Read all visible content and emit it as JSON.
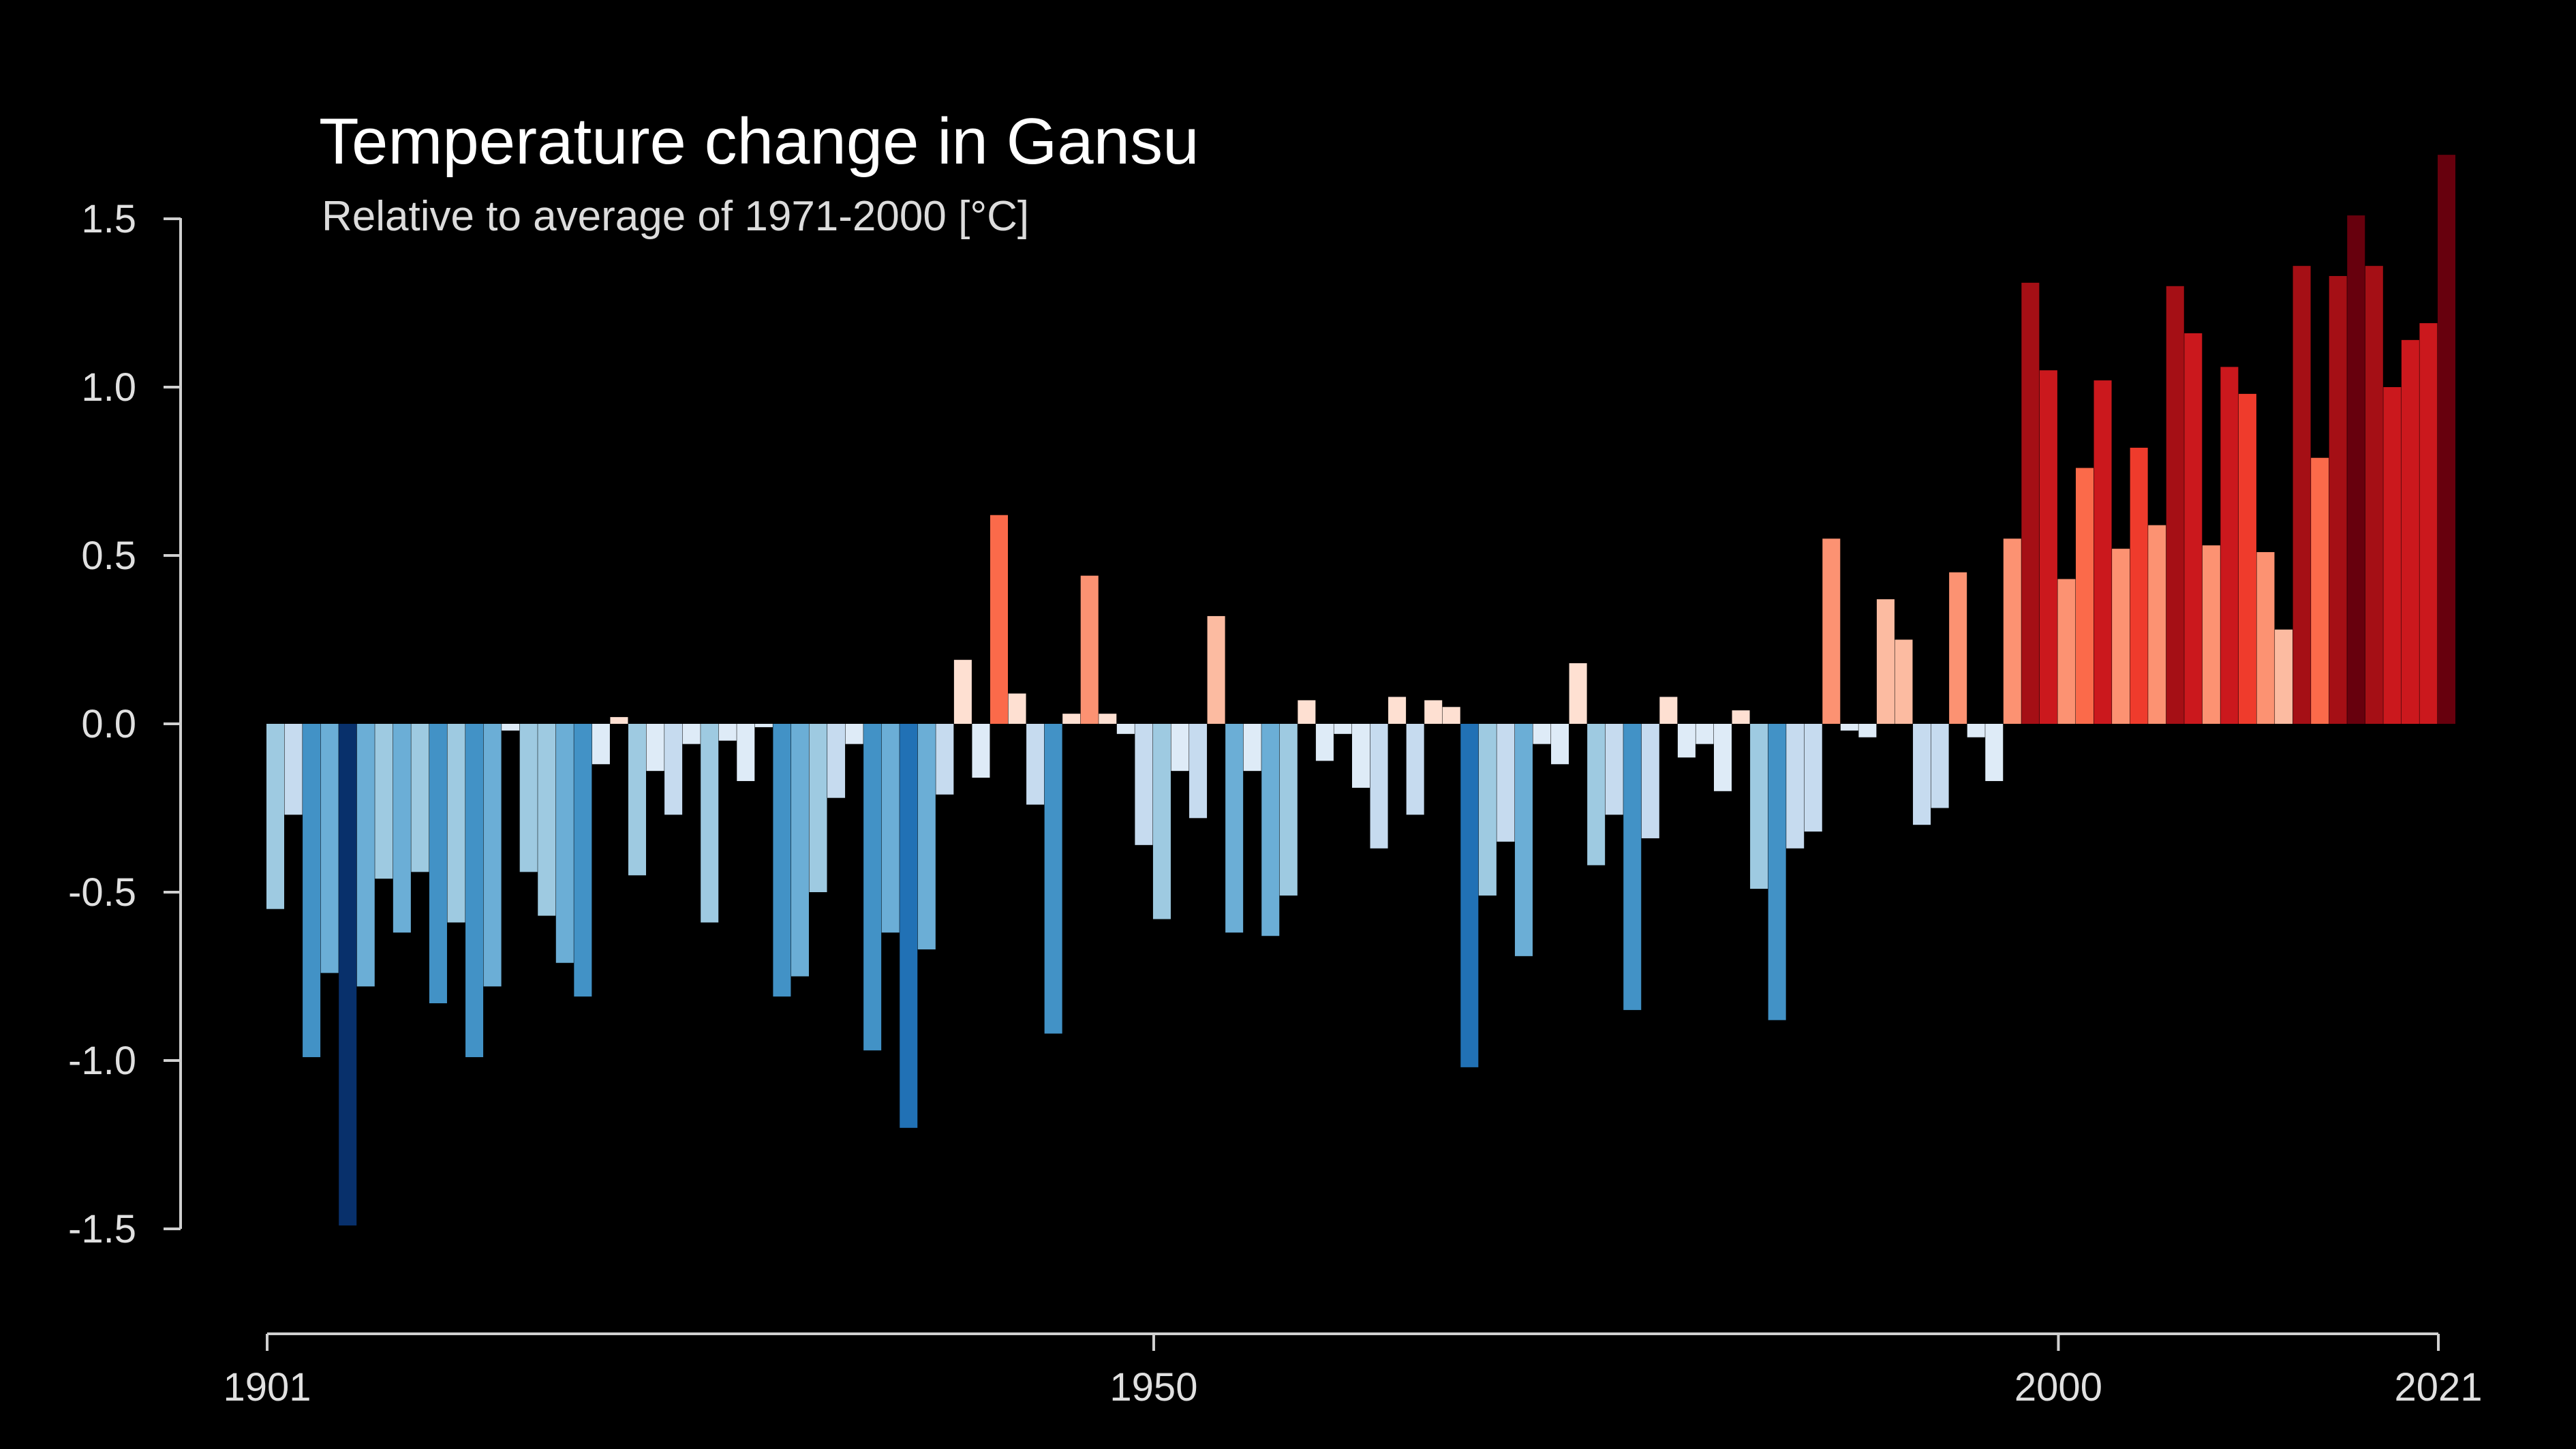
{
  "chart_data": {
    "type": "bar",
    "title": "Temperature change in Gansu",
    "subtitle": "Relative to average of 1971-2000  [°C]",
    "xlabel": "",
    "ylabel": "",
    "x_start": 1901,
    "x_end": 2021,
    "ylim": [
      -1.5,
      1.5
    ],
    "y_ticks": [
      "1.5",
      "1.0",
      "0.5",
      "0.0",
      "-0.5",
      "-1.0",
      "-1.5"
    ],
    "x_ticks": [
      "1901",
      "1950",
      "2000",
      "2021"
    ],
    "grid": false,
    "background": "#000000",
    "text_color": "#ffffff",
    "colormap": [
      "#08306b",
      "#08519c",
      "#2171b5",
      "#4292c6",
      "#6baed6",
      "#9ecae1",
      "#c6dbef",
      "#deebf7",
      "#fee0d2",
      "#fcbba1",
      "#fc9272",
      "#fb6a4a",
      "#ef3b2c",
      "#cb181d",
      "#a50f15",
      "#67000d"
    ],
    "categories": [
      1901,
      1902,
      1903,
      1904,
      1905,
      1906,
      1907,
      1908,
      1909,
      1910,
      1911,
      1912,
      1913,
      1914,
      1915,
      1916,
      1917,
      1918,
      1919,
      1920,
      1921,
      1922,
      1923,
      1924,
      1925,
      1926,
      1927,
      1928,
      1929,
      1930,
      1931,
      1932,
      1933,
      1934,
      1935,
      1936,
      1937,
      1938,
      1939,
      1940,
      1941,
      1942,
      1943,
      1944,
      1945,
      1946,
      1947,
      1948,
      1949,
      1950,
      1951,
      1952,
      1953,
      1954,
      1955,
      1956,
      1957,
      1958,
      1959,
      1960,
      1961,
      1962,
      1963,
      1964,
      1965,
      1966,
      1967,
      1968,
      1969,
      1970,
      1971,
      1972,
      1973,
      1974,
      1975,
      1976,
      1977,
      1978,
      1979,
      1980,
      1981,
      1982,
      1983,
      1984,
      1985,
      1986,
      1987,
      1988,
      1989,
      1990,
      1991,
      1992,
      1993,
      1994,
      1995,
      1996,
      1997,
      1998,
      1999,
      2000,
      2001,
      2002,
      2003,
      2004,
      2005,
      2006,
      2007,
      2008,
      2009,
      2010,
      2011,
      2012,
      2013,
      2014,
      2015,
      2016,
      2017,
      2018,
      2019,
      2020,
      2021
    ],
    "values": [
      -0.55,
      -0.27,
      -0.99,
      -0.74,
      -1.49,
      -0.78,
      -0.46,
      -0.62,
      -0.44,
      -0.83,
      -0.59,
      -0.99,
      -0.78,
      -0.02,
      -0.44,
      -0.57,
      -0.71,
      -0.81,
      -0.12,
      0.02,
      -0.45,
      -0.14,
      -0.27,
      -0.06,
      -0.59,
      -0.05,
      -0.17,
      -0.01,
      -0.81,
      -0.75,
      -0.5,
      -0.22,
      -0.06,
      -0.97,
      -0.62,
      -1.2,
      -0.67,
      -0.21,
      0.19,
      -0.16,
      0.62,
      0.09,
      -0.24,
      -0.92,
      0.03,
      0.44,
      0.03,
      -0.03,
      -0.36,
      -0.58,
      -0.14,
      -0.28,
      0.32,
      -0.62,
      -0.14,
      -0.63,
      -0.51,
      0.07,
      -0.11,
      -0.03,
      -0.19,
      -0.37,
      0.08,
      -0.27,
      0.07,
      0.05,
      -1.02,
      -0.51,
      -0.35,
      -0.69,
      -0.06,
      -0.12,
      0.18,
      -0.42,
      -0.27,
      -0.85,
      -0.34,
      0.08,
      -0.1,
      -0.06,
      -0.2,
      0.04,
      -0.49,
      -0.88,
      -0.37,
      -0.32,
      0.55,
      -0.02,
      -0.04,
      0.37,
      0.25,
      -0.3,
      -0.25,
      0.45,
      -0.04,
      -0.17,
      0.55,
      1.31,
      1.05,
      0.43,
      0.76,
      1.02,
      0.52,
      0.82,
      0.59,
      1.3,
      1.16,
      0.53,
      1.06,
      0.98,
      0.51,
      0.28,
      1.36,
      0.79,
      1.33,
      1.51,
      1.36,
      1.0,
      1.14,
      1.19,
      1.69
    ]
  }
}
